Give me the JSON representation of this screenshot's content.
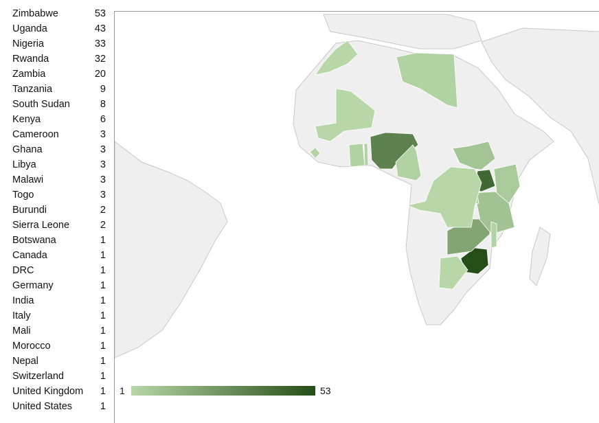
{
  "chart_data": {
    "type": "choropleth-map",
    "rows": [
      {
        "country": "Zimbabwe",
        "value": 53
      },
      {
        "country": "Uganda",
        "value": 43
      },
      {
        "country": "Nigeria",
        "value": 33
      },
      {
        "country": "Rwanda",
        "value": 32
      },
      {
        "country": "Zambia",
        "value": 20
      },
      {
        "country": "Tanzania",
        "value": 9
      },
      {
        "country": "South Sudan",
        "value": 8
      },
      {
        "country": "Kenya",
        "value": 6
      },
      {
        "country": "Cameroon",
        "value": 3
      },
      {
        "country": "Ghana",
        "value": 3
      },
      {
        "country": "Libya",
        "value": 3
      },
      {
        "country": "Malawi",
        "value": 3
      },
      {
        "country": "Togo",
        "value": 3
      },
      {
        "country": "Burundi",
        "value": 2
      },
      {
        "country": "Sierra Leone",
        "value": 2
      },
      {
        "country": "Botswana",
        "value": 1
      },
      {
        "country": "Canada",
        "value": 1
      },
      {
        "country": "DRC",
        "value": 1
      },
      {
        "country": "Germany",
        "value": 1
      },
      {
        "country": "India",
        "value": 1
      },
      {
        "country": "Italy",
        "value": 1
      },
      {
        "country": "Mali",
        "value": 1
      },
      {
        "country": "Morocco",
        "value": 1
      },
      {
        "country": "Nepal",
        "value": 1
      },
      {
        "country": "Switzerland",
        "value": 1
      },
      {
        "country": "United Kingdom",
        "value": 1
      },
      {
        "country": "United States",
        "value": 1
      }
    ],
    "legend": {
      "min_label": "1",
      "max_label": "53",
      "min": 1,
      "max": 53
    },
    "colors": {
      "low": "#b7d7a8",
      "high": "#254d17",
      "land": "#efefef",
      "border": "#c8c8c8"
    }
  }
}
